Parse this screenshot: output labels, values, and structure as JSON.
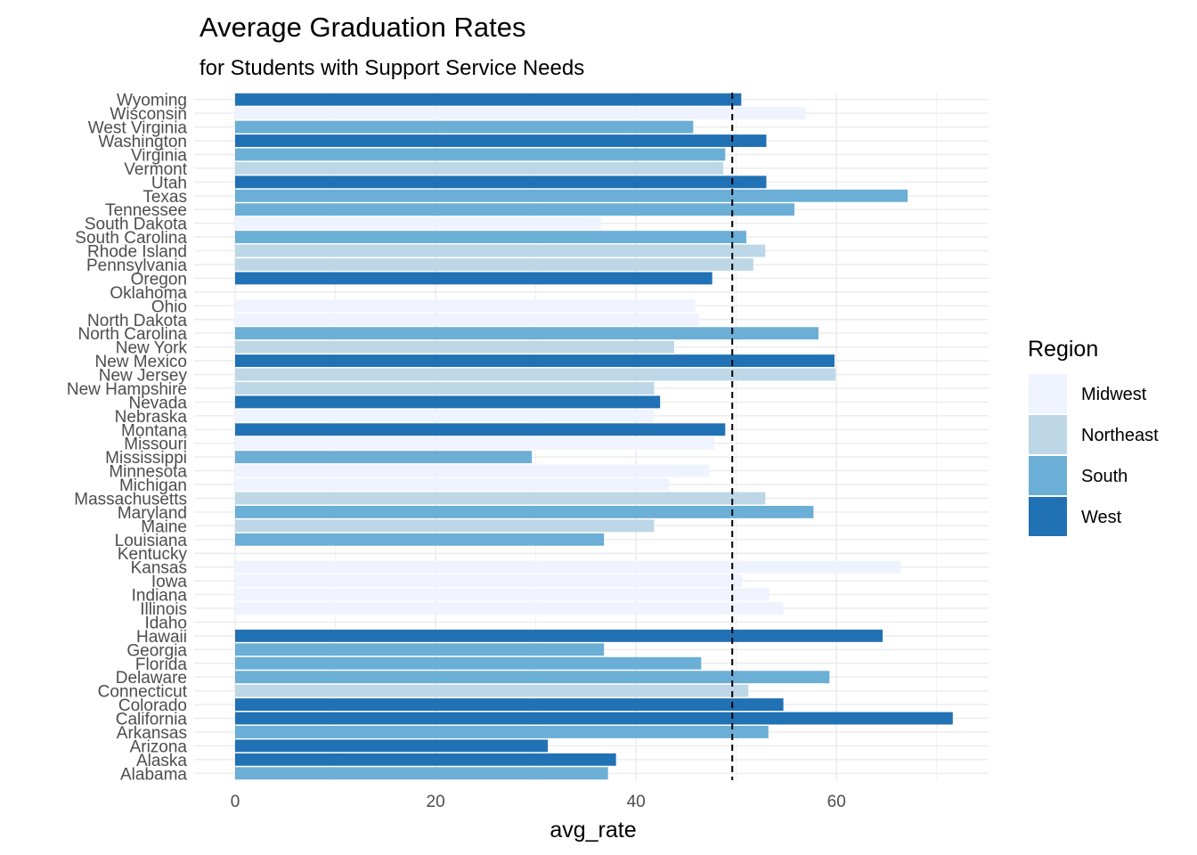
{
  "chart_data": {
    "type": "bar",
    "orientation": "horizontal",
    "title": "Average Graduation Rates",
    "subtitle": "for Students with Support Service Needs",
    "xlabel": "avg_rate",
    "ylabel": "",
    "xlim": [
      0,
      75
    ],
    "x_ticks": [
      0,
      20,
      40,
      60
    ],
    "reference_line": {
      "x": 49.6,
      "style": "dashed"
    },
    "grid": true,
    "legend": {
      "title": "Region",
      "position": "right",
      "entries": [
        {
          "name": "Midwest",
          "color": "#eff3ff"
        },
        {
          "name": "Northeast",
          "color": "#bdd7e7"
        },
        {
          "name": "South",
          "color": "#6baed6"
        },
        {
          "name": "West",
          "color": "#2171b5"
        }
      ]
    },
    "categories": [
      "Alabama",
      "Alaska",
      "Arizona",
      "Arkansas",
      "California",
      "Colorado",
      "Connecticut",
      "Delaware",
      "Florida",
      "Georgia",
      "Hawaii",
      "Idaho",
      "Illinois",
      "Indiana",
      "Iowa",
      "Kansas",
      "Kentucky",
      "Louisiana",
      "Maine",
      "Maryland",
      "Massachusetts",
      "Michigan",
      "Minnesota",
      "Mississippi",
      "Missouri",
      "Montana",
      "Nebraska",
      "Nevada",
      "New Hampshire",
      "New Jersey",
      "New Mexico",
      "New York",
      "North Carolina",
      "North Dakota",
      "Ohio",
      "Oklahoma",
      "Oregon",
      "Pennsylvania",
      "Rhode Island",
      "South Carolina",
      "South Dakota",
      "Tennessee",
      "Texas",
      "Utah",
      "Vermont",
      "Virginia",
      "Washington",
      "West Virginia",
      "Wisconsin",
      "Wyoming"
    ],
    "values": [
      37.2,
      38.0,
      31.2,
      53.2,
      71.6,
      54.7,
      51.2,
      59.3,
      46.5,
      36.8,
      64.6,
      0,
      54.7,
      53.3,
      50.6,
      66.4,
      0,
      36.8,
      41.8,
      57.7,
      52.9,
      43.3,
      47.3,
      29.6,
      47.8,
      48.9,
      41.8,
      42.4,
      41.8,
      59.9,
      59.8,
      43.8,
      58.2,
      46.3,
      45.9,
      0,
      47.6,
      51.7,
      52.9,
      51.0,
      36.5,
      55.8,
      67.1,
      53.0,
      48.7,
      48.9,
      53.0,
      45.7,
      56.9,
      50.5
    ],
    "regions": [
      "South",
      "West",
      "West",
      "South",
      "West",
      "West",
      "Northeast",
      "South",
      "South",
      "South",
      "West",
      "West",
      "Midwest",
      "Midwest",
      "Midwest",
      "Midwest",
      "South",
      "South",
      "Northeast",
      "South",
      "Northeast",
      "Midwest",
      "Midwest",
      "South",
      "Midwest",
      "West",
      "Midwest",
      "West",
      "Northeast",
      "Northeast",
      "West",
      "Northeast",
      "South",
      "Midwest",
      "Midwest",
      "South",
      "West",
      "Northeast",
      "Northeast",
      "South",
      "Midwest",
      "South",
      "South",
      "West",
      "Northeast",
      "South",
      "West",
      "South",
      "Midwest",
      "West"
    ]
  }
}
